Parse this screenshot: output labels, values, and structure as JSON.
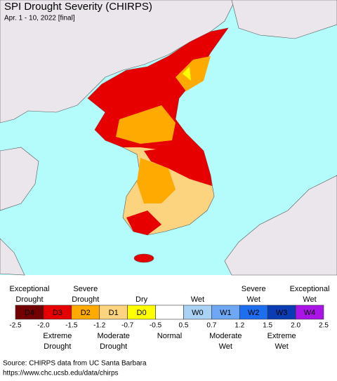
{
  "header": {
    "title": "SPI Drought Severity (CHIRPS)",
    "subtitle": "Apr. 1 - 10, 2022 [final]"
  },
  "legend": {
    "classes": [
      {
        "code": "D4",
        "color": "#730000"
      },
      {
        "code": "D3",
        "color": "#e60000"
      },
      {
        "code": "D2",
        "color": "#ffaa00"
      },
      {
        "code": "D1",
        "color": "#fcd37f"
      },
      {
        "code": "D0",
        "color": "#ffff00"
      },
      {
        "code": null,
        "color": "#ffffff"
      },
      {
        "code": "W0",
        "color": "#aad2f5"
      },
      {
        "code": "W1",
        "color": "#6ea8f5"
      },
      {
        "code": "W2",
        "color": "#1e6ef0"
      },
      {
        "code": "W3",
        "color": "#0a3cb4"
      },
      {
        "code": "W4",
        "color": "#aa14e6"
      }
    ],
    "ticks": [
      "-2.5",
      "-2.0",
      "-1.5",
      "-1.2",
      "-0.7",
      "-0.5",
      "0.5",
      "0.7",
      "1.2",
      "1.5",
      "2.0",
      "2.5"
    ],
    "top_labels": [
      {
        "class": 0,
        "lines": [
          "Exceptional",
          "Drought"
        ]
      },
      {
        "class": 2,
        "lines": [
          "Severe",
          "Drought"
        ]
      },
      {
        "class": 4,
        "lines": [
          "Dry"
        ]
      },
      {
        "class": 6,
        "lines": [
          "Wet"
        ]
      },
      {
        "class": 8,
        "lines": [
          "Severe",
          "Wet"
        ]
      },
      {
        "class": 10,
        "lines": [
          "Exceptional",
          "Wet"
        ]
      }
    ],
    "bottom_labels": [
      {
        "class": 1,
        "lines": [
          "Extreme",
          "Drought"
        ]
      },
      {
        "class": 3,
        "lines": [
          "Moderate",
          "Drought"
        ]
      },
      {
        "class": 5,
        "lines": [
          "Normal"
        ]
      },
      {
        "class": 7,
        "lines": [
          "Moderate",
          "Wet"
        ]
      },
      {
        "class": 9,
        "lines": [
          "Extreme",
          "Wet"
        ]
      }
    ]
  },
  "source": {
    "line1": "Source: CHIRPS data from UC Santa Barbara",
    "line2": "https://www.chc.ucsb.edu/data/chirps"
  }
}
